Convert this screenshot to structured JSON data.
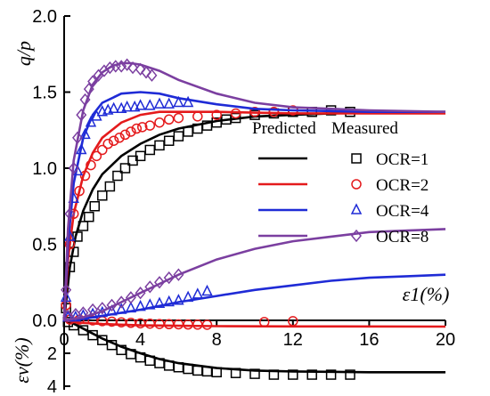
{
  "chart_data": {
    "type": "line",
    "xlabel": "ε1(%)",
    "ylabel_top": "q/p",
    "ylabel_bottom": "εv(%)",
    "x_ticks": [
      "0",
      "4",
      "8",
      "12",
      "16",
      "20"
    ],
    "y_ticks_top": [
      "0.0",
      "0.5",
      "1.0",
      "1.5",
      "2.0"
    ],
    "y_ticks_bottom": [
      "2",
      "4"
    ],
    "xlim": [
      0,
      20
    ],
    "ylim_top": [
      0,
      2.0
    ],
    "ylim_bottom": [
      0,
      4
    ],
    "legend": {
      "header_predicted": "Predicted",
      "header_measured": "Measured",
      "placement": "right"
    },
    "series": [
      {
        "name": "OCR=1",
        "color": "#000000",
        "marker": "square",
        "predicted_q_p": [
          [
            0,
            0
          ],
          [
            0.3,
            0.35
          ],
          [
            0.6,
            0.55
          ],
          [
            1,
            0.72
          ],
          [
            1.5,
            0.86
          ],
          [
            2,
            0.96
          ],
          [
            3,
            1.08
          ],
          [
            4,
            1.16
          ],
          [
            5,
            1.22
          ],
          [
            6,
            1.26
          ],
          [
            8,
            1.31
          ],
          [
            10,
            1.34
          ],
          [
            12,
            1.35
          ],
          [
            14,
            1.36
          ],
          [
            16,
            1.365
          ],
          [
            20,
            1.37
          ]
        ],
        "measured_q_p": [
          [
            0.1,
            0.08
          ],
          [
            0.3,
            0.35
          ],
          [
            0.5,
            0.45
          ],
          [
            0.7,
            0.55
          ],
          [
            1,
            0.62
          ],
          [
            1.3,
            0.68
          ],
          [
            1.6,
            0.75
          ],
          [
            2,
            0.82
          ],
          [
            2.4,
            0.88
          ],
          [
            2.8,
            0.95
          ],
          [
            3.2,
            1.0
          ],
          [
            3.6,
            1.05
          ],
          [
            4,
            1.08
          ],
          [
            4.5,
            1.12
          ],
          [
            5,
            1.15
          ],
          [
            5.5,
            1.18
          ],
          [
            6,
            1.21
          ],
          [
            6.5,
            1.24
          ],
          [
            7,
            1.26
          ],
          [
            7.5,
            1.28
          ],
          [
            8,
            1.3
          ],
          [
            8.5,
            1.32
          ],
          [
            9,
            1.33
          ],
          [
            10,
            1.35
          ],
          [
            11,
            1.36
          ],
          [
            12,
            1.37
          ],
          [
            13,
            1.37
          ],
          [
            14,
            1.38
          ],
          [
            15,
            1.37
          ]
        ],
        "predicted_ev": [
          [
            0,
            0
          ],
          [
            0.5,
            0.2
          ],
          [
            1,
            0.5
          ],
          [
            2,
            1.1
          ],
          [
            3,
            1.6
          ],
          [
            4,
            2.0
          ],
          [
            5,
            2.35
          ],
          [
            6,
            2.6
          ],
          [
            8,
            2.9
          ],
          [
            10,
            3.05
          ],
          [
            12,
            3.1
          ],
          [
            16,
            3.15
          ],
          [
            20,
            3.15
          ]
        ],
        "measured_ev": [
          [
            0.2,
            0.1
          ],
          [
            0.5,
            0.3
          ],
          [
            1,
            0.6
          ],
          [
            1.5,
            0.9
          ],
          [
            2,
            1.2
          ],
          [
            2.5,
            1.5
          ],
          [
            3,
            1.8
          ],
          [
            3.5,
            2.05
          ],
          [
            4,
            2.25
          ],
          [
            4.5,
            2.45
          ],
          [
            5,
            2.6
          ],
          [
            5.5,
            2.75
          ],
          [
            6,
            2.85
          ],
          [
            6.5,
            2.95
          ],
          [
            7,
            3.05
          ],
          [
            7.5,
            3.1
          ],
          [
            8,
            3.15
          ],
          [
            9,
            3.2
          ],
          [
            10,
            3.25
          ],
          [
            11,
            3.3
          ],
          [
            12,
            3.3
          ],
          [
            13,
            3.3
          ],
          [
            14,
            3.3
          ],
          [
            15,
            3.3
          ]
        ]
      },
      {
        "name": "OCR=2",
        "color": "#e41a1c",
        "marker": "circle",
        "predicted_q_p": [
          [
            0,
            0
          ],
          [
            0.2,
            0.4
          ],
          [
            0.5,
            0.7
          ],
          [
            1,
            0.95
          ],
          [
            1.5,
            1.1
          ],
          [
            2,
            1.2
          ],
          [
            3,
            1.3
          ],
          [
            4,
            1.35
          ],
          [
            5,
            1.37
          ],
          [
            6,
            1.37
          ],
          [
            8,
            1.37
          ],
          [
            12,
            1.36
          ],
          [
            20,
            1.36
          ]
        ],
        "measured_q_p": [
          [
            0.1,
            0.1
          ],
          [
            0.3,
            0.5
          ],
          [
            0.5,
            0.7
          ],
          [
            0.8,
            0.85
          ],
          [
            1.1,
            0.95
          ],
          [
            1.4,
            1.02
          ],
          [
            1.7,
            1.08
          ],
          [
            2,
            1.12
          ],
          [
            2.3,
            1.16
          ],
          [
            2.6,
            1.18
          ],
          [
            2.9,
            1.2
          ],
          [
            3.2,
            1.22
          ],
          [
            3.5,
            1.24
          ],
          [
            3.8,
            1.26
          ],
          [
            4.1,
            1.27
          ],
          [
            4.5,
            1.28
          ],
          [
            5,
            1.3
          ],
          [
            5.5,
            1.32
          ],
          [
            6,
            1.33
          ],
          [
            7,
            1.34
          ],
          [
            8,
            1.35
          ],
          [
            9,
            1.36
          ],
          [
            10,
            1.37
          ],
          [
            11,
            1.37
          ],
          [
            12,
            1.38
          ]
        ],
        "predicted_ev": [
          [
            0,
            0
          ],
          [
            0.5,
            0.1
          ],
          [
            1,
            0.15
          ],
          [
            2,
            0.22
          ],
          [
            4,
            0.3
          ],
          [
            8,
            0.35
          ],
          [
            12,
            0.37
          ],
          [
            20,
            0.38
          ]
        ],
        "measured_ev": [
          [
            0.3,
            -0.05
          ],
          [
            0.8,
            -0.05
          ],
          [
            1.5,
            0.0
          ],
          [
            2,
            0.05
          ],
          [
            2.5,
            0.08
          ],
          [
            3,
            0.12
          ],
          [
            3.5,
            0.15
          ],
          [
            4,
            0.18
          ],
          [
            4.5,
            0.2
          ],
          [
            5,
            0.22
          ],
          [
            5.5,
            0.23
          ],
          [
            6,
            0.24
          ],
          [
            6.5,
            0.25
          ],
          [
            7,
            0.26
          ],
          [
            7.5,
            0.27
          ],
          [
            10.5,
            0.1
          ],
          [
            12,
            0.05
          ]
        ]
      },
      {
        "name": "OCR=4",
        "color": "#1f2bd6",
        "marker": "triangle",
        "predicted_q_p": [
          [
            0,
            0
          ],
          [
            0.2,
            0.5
          ],
          [
            0.5,
            0.9
          ],
          [
            1,
            1.2
          ],
          [
            1.5,
            1.35
          ],
          [
            2,
            1.43
          ],
          [
            3,
            1.49
          ],
          [
            4,
            1.5
          ],
          [
            5,
            1.49
          ],
          [
            6,
            1.46
          ],
          [
            8,
            1.42
          ],
          [
            10,
            1.39
          ],
          [
            12,
            1.38
          ],
          [
            16,
            1.37
          ],
          [
            20,
            1.37
          ]
        ],
        "measured_q_p": [
          [
            0.1,
            0.15
          ],
          [
            0.3,
            0.55
          ],
          [
            0.5,
            0.8
          ],
          [
            0.7,
            0.98
          ],
          [
            0.9,
            1.12
          ],
          [
            1.1,
            1.22
          ],
          [
            1.4,
            1.3
          ],
          [
            1.7,
            1.34
          ],
          [
            2,
            1.37
          ],
          [
            2.3,
            1.38
          ],
          [
            2.6,
            1.39
          ],
          [
            3,
            1.39
          ],
          [
            3.3,
            1.4
          ],
          [
            3.7,
            1.4
          ],
          [
            4,
            1.41
          ],
          [
            4.5,
            1.41
          ],
          [
            5,
            1.42
          ],
          [
            5.5,
            1.42
          ],
          [
            6,
            1.43
          ],
          [
            6.5,
            1.43
          ]
        ],
        "predicted_q_p_dilation": [
          [
            0,
            0
          ],
          [
            1,
            0.01
          ],
          [
            2,
            0.03
          ],
          [
            4,
            0.07
          ],
          [
            6,
            0.12
          ],
          [
            8,
            0.16
          ],
          [
            10,
            0.2
          ],
          [
            12,
            0.23
          ],
          [
            14,
            0.26
          ],
          [
            16,
            0.28
          ],
          [
            18,
            0.29
          ],
          [
            20,
            0.3
          ]
        ],
        "measured_q_p_dilation": [
          [
            0.2,
            0.02
          ],
          [
            0.6,
            0.02
          ],
          [
            1,
            0.03
          ],
          [
            1.5,
            0.04
          ],
          [
            2,
            0.05
          ],
          [
            2.5,
            0.06
          ],
          [
            3,
            0.07
          ],
          [
            3.5,
            0.08
          ],
          [
            4,
            0.09
          ],
          [
            4.5,
            0.1
          ],
          [
            5,
            0.11
          ],
          [
            5.5,
            0.12
          ],
          [
            6,
            0.13
          ],
          [
            6.5,
            0.15
          ],
          [
            7,
            0.17
          ],
          [
            7.5,
            0.19
          ]
        ]
      },
      {
        "name": "OCR=8",
        "color": "#7b3fa0",
        "marker": "diamond",
        "predicted_q_p": [
          [
            0,
            0
          ],
          [
            0.2,
            0.6
          ],
          [
            0.5,
            1.05
          ],
          [
            1,
            1.38
          ],
          [
            1.5,
            1.55
          ],
          [
            2,
            1.63
          ],
          [
            2.5,
            1.67
          ],
          [
            3,
            1.69
          ],
          [
            3.5,
            1.69
          ],
          [
            4,
            1.68
          ],
          [
            5,
            1.64
          ],
          [
            6,
            1.58
          ],
          [
            8,
            1.49
          ],
          [
            10,
            1.43
          ],
          [
            12,
            1.4
          ],
          [
            16,
            1.38
          ],
          [
            20,
            1.37
          ]
        ],
        "measured_q_p": [
          [
            0.1,
            0.2
          ],
          [
            0.3,
            0.7
          ],
          [
            0.5,
            1.0
          ],
          [
            0.7,
            1.2
          ],
          [
            0.9,
            1.35
          ],
          [
            1.1,
            1.45
          ],
          [
            1.3,
            1.52
          ],
          [
            1.5,
            1.57
          ],
          [
            1.8,
            1.61
          ],
          [
            2.1,
            1.64
          ],
          [
            2.4,
            1.66
          ],
          [
            2.7,
            1.67
          ],
          [
            3,
            1.67
          ],
          [
            3.3,
            1.68
          ],
          [
            3.6,
            1.66
          ],
          [
            4,
            1.65
          ],
          [
            4.3,
            1.63
          ],
          [
            4.6,
            1.61
          ]
        ],
        "predicted_q_p_dilation": [
          [
            0,
            0
          ],
          [
            1,
            0.02
          ],
          [
            2,
            0.06
          ],
          [
            3,
            0.12
          ],
          [
            4,
            0.18
          ],
          [
            5,
            0.24
          ],
          [
            6,
            0.3
          ],
          [
            8,
            0.4
          ],
          [
            10,
            0.47
          ],
          [
            12,
            0.52
          ],
          [
            14,
            0.55
          ],
          [
            16,
            0.58
          ],
          [
            18,
            0.59
          ],
          [
            20,
            0.6
          ]
        ],
        "measured_q_p_dilation": [
          [
            0.2,
            0.03
          ],
          [
            0.6,
            0.04
          ],
          [
            1,
            0.05
          ],
          [
            1.5,
            0.07
          ],
          [
            2,
            0.08
          ],
          [
            2.5,
            0.1
          ],
          [
            3,
            0.12
          ],
          [
            3.5,
            0.15
          ],
          [
            4,
            0.18
          ],
          [
            4.5,
            0.22
          ],
          [
            5,
            0.25
          ],
          [
            5.5,
            0.28
          ],
          [
            6,
            0.3
          ]
        ]
      }
    ]
  }
}
